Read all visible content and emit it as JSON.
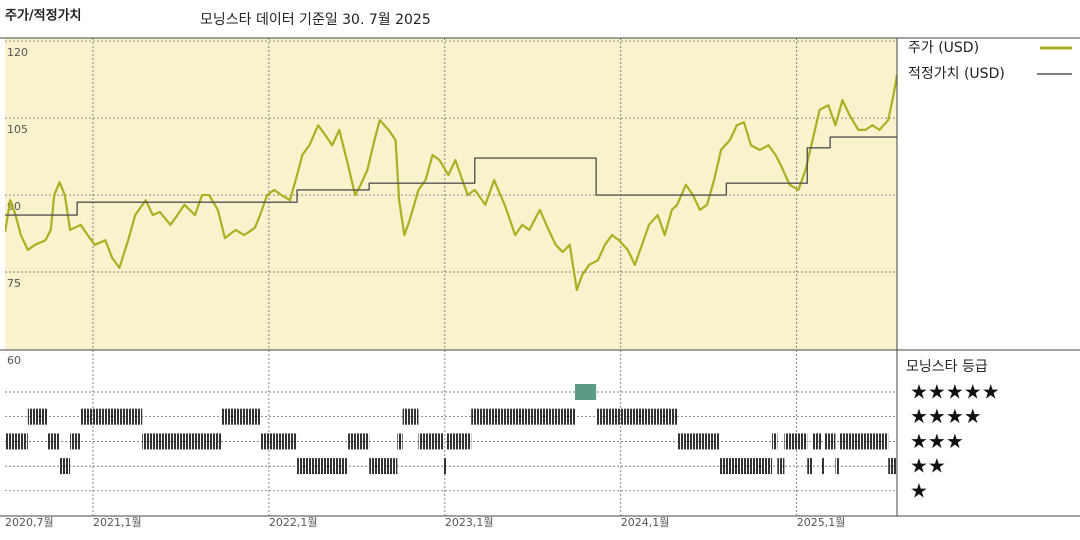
{
  "chart_data": {
    "type": "line",
    "title": "주가/적정가치",
    "subtitle": "모닝스타 데이터 기준일 30. 7월 2025",
    "xlim": [
      2020.5,
      2025.57
    ],
    "xticks": [
      {
        "value": 2020.5,
        "label": "2020,7월"
      },
      {
        "value": 2021,
        "label": "2021,1월"
      },
      {
        "value": 2022,
        "label": "2022,1월"
      },
      {
        "value": 2023,
        "label": "2023,1월"
      },
      {
        "value": 2024,
        "label": "2024,1월"
      },
      {
        "value": 2025,
        "label": "2025,1월"
      }
    ],
    "ylim": [
      60,
      120.6
    ],
    "yticks": [
      60,
      75,
      90,
      105,
      120
    ],
    "grid": true,
    "legend": "right",
    "background": "#f8f3cd",
    "series": [
      {
        "name": "주가 (USD)",
        "color": "#a9b022",
        "x": [
          2020.5,
          2020.53,
          2020.56,
          2020.59,
          2020.63,
          2020.67,
          2020.73,
          2020.76,
          2020.78,
          2020.81,
          2020.84,
          2020.87,
          2020.93,
          2020.97,
          2021.01,
          2021.07,
          2021.11,
          2021.15,
          2021.2,
          2021.24,
          2021.3,
          2021.34,
          2021.38,
          2021.44,
          2021.48,
          2021.52,
          2021.58,
          2021.62,
          2021.66,
          2021.71,
          2021.75,
          2021.81,
          2021.86,
          2021.92,
          2021.95,
          2021.99,
          2022.03,
          2022.07,
          2022.12,
          2022.16,
          2022.19,
          2022.23,
          2022.28,
          2022.32,
          2022.36,
          2022.4,
          2022.45,
          2022.49,
          2022.52,
          2022.56,
          2022.6,
          2022.63,
          2022.68,
          2022.72,
          2022.74,
          2022.77,
          2022.8,
          2022.85,
          2022.89,
          2022.93,
          2022.97,
          2023.02,
          2023.06,
          2023.1,
          2023.13,
          2023.17,
          2023.23,
          2023.28,
          2023.34,
          2023.4,
          2023.44,
          2023.48,
          2023.54,
          2023.59,
          2023.63,
          2023.67,
          2023.71,
          2023.75,
          2023.78,
          2023.82,
          2023.87,
          2023.91,
          2023.95,
          2023.99,
          2024.04,
          2024.08,
          2024.13,
          2024.16,
          2024.21,
          2024.25,
          2024.29,
          2024.32,
          2024.37,
          2024.41,
          2024.45,
          2024.49,
          2024.53,
          2024.57,
          2024.62,
          2024.66,
          2024.7,
          2024.74,
          2024.79,
          2024.84,
          2024.88,
          2024.91,
          2024.96,
          2025.01,
          2025.05,
          2025.09,
          2025.13,
          2025.18,
          2025.22,
          2025.26,
          2025.3,
          2025.35,
          2025.39,
          2025.43,
          2025.47,
          2025.52,
          2025.55,
          2025.57
        ],
        "values": [
          82.8,
          89.0,
          86.1,
          82.2,
          79.3,
          80.3,
          81.2,
          83.2,
          90.0,
          92.5,
          90.0,
          83.2,
          84.2,
          82.2,
          80.3,
          81.2,
          77.7,
          75.8,
          81.2,
          86.1,
          89.0,
          86.1,
          86.7,
          84.2,
          86.1,
          88.1,
          86.1,
          90.0,
          90.0,
          87.1,
          81.6,
          83.2,
          82.2,
          83.6,
          86.1,
          90.0,
          91.0,
          90.0,
          89.0,
          93.9,
          97.8,
          99.7,
          103.6,
          101.7,
          99.7,
          102.7,
          95.8,
          90.0,
          91.9,
          94.9,
          100.7,
          104.6,
          102.7,
          100.7,
          89.0,
          82.2,
          85.1,
          91.0,
          92.9,
          97.8,
          96.8,
          93.9,
          96.8,
          92.9,
          90.0,
          91.0,
          88.1,
          92.9,
          88.1,
          82.2,
          84.2,
          83.2,
          87.1,
          83.2,
          80.3,
          78.9,
          80.3,
          71.5,
          74.4,
          76.4,
          77.3,
          80.3,
          82.2,
          81.2,
          79.3,
          76.4,
          81.2,
          84.2,
          86.1,
          82.2,
          87.1,
          88.1,
          92.0,
          90.0,
          87.1,
          88.1,
          92.9,
          98.8,
          100.7,
          103.6,
          104.2,
          99.7,
          98.8,
          99.7,
          97.8,
          95.8,
          92.0,
          91.0,
          94.9,
          100.7,
          106.6,
          107.5,
          103.6,
          108.5,
          105.6,
          102.7,
          102.7,
          103.6,
          102.7,
          104.6,
          109.5,
          113.4
        ]
      },
      {
        "name": "적정가치 (USD)",
        "color": "#555555",
        "step": "after",
        "x": [
          2020.5,
          2020.91,
          2022.16,
          2022.57,
          2023.17,
          2023.86,
          2024.6,
          2025.06,
          2025.19,
          2025.57
        ],
        "values": [
          86.1,
          88.6,
          91.0,
          92.3,
          97.2,
          90.0,
          92.3,
          99.2,
          101.3,
          101.3
        ]
      }
    ],
    "rating_panel": {
      "title": "모닝스타 등급",
      "levels": [
        "★★★★★",
        "★★★★",
        "★★★",
        "★★",
        "★"
      ],
      "color": "#333333",
      "top_color": "#5b9b83",
      "breaks": [
        2020.5,
        2020.63,
        2020.74,
        2020.81,
        2020.87,
        2020.93,
        2021.28,
        2021.73,
        2021.95,
        2022.16,
        2022.45,
        2022.57,
        2022.73,
        2022.76,
        2022.85,
        2022.99,
        2023.01,
        2023.15,
        2023.74,
        2023.86,
        2024.32,
        2024.56,
        2024.86,
        2024.89,
        2024.93,
        2025.06,
        2025.09,
        2025.14,
        2025.16,
        2025.22,
        2025.24,
        2025.52,
        2025.57
      ],
      "stars": [
        3,
        4,
        3,
        2,
        3,
        4,
        3,
        4,
        3,
        2,
        3,
        2,
        3,
        4,
        3,
        2,
        3,
        4,
        5,
        4,
        3,
        2,
        3,
        2,
        3,
        2,
        3,
        2,
        3,
        2,
        3,
        2
      ]
    }
  }
}
